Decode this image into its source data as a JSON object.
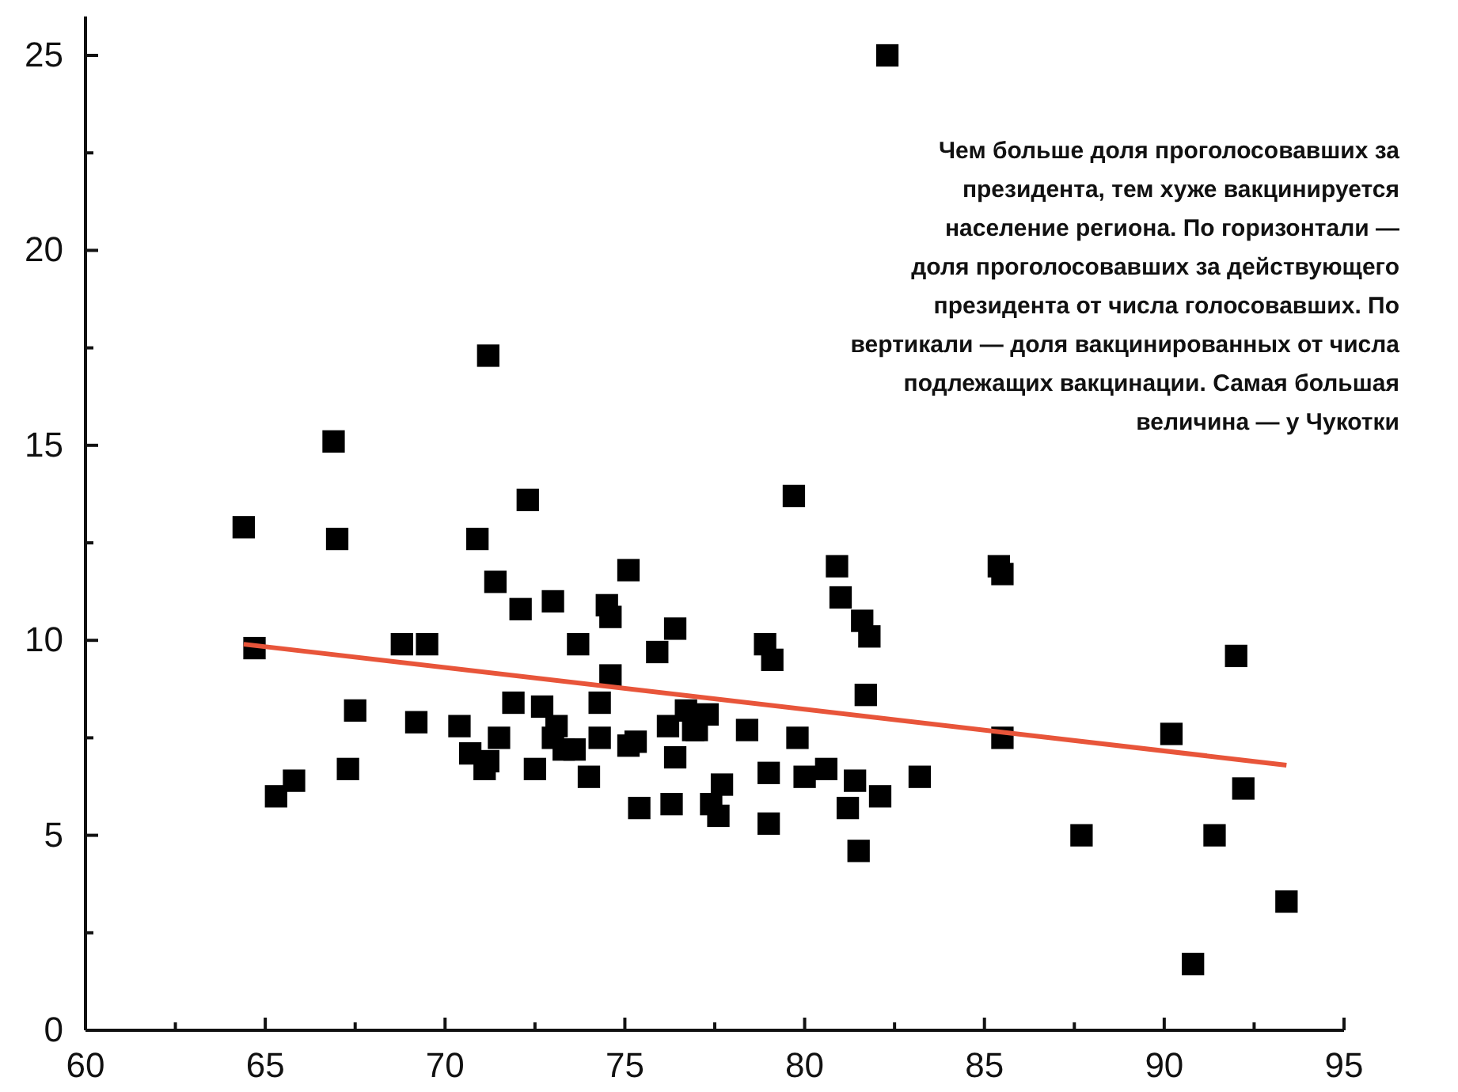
{
  "chart_data": {
    "type": "scatter",
    "grid": false,
    "xlim": [
      60,
      95
    ],
    "ylim": [
      0,
      26
    ],
    "xticks": [
      60,
      {
        "value": 62.5,
        "label": null
      },
      65,
      {
        "value": 67.5,
        "label": null
      },
      70,
      {
        "value": 72.5,
        "label": null
      },
      75,
      {
        "value": 77.5,
        "label": null
      },
      80,
      {
        "value": 82.5,
        "label": null
      },
      85,
      {
        "value": 87.5,
        "label": null
      },
      90,
      {
        "value": 92.5,
        "label": null
      },
      95
    ],
    "yticks": [
      0,
      {
        "value": 2.5,
        "label": null
      },
      5,
      {
        "value": 7.5,
        "label": null
      },
      10,
      {
        "value": 12.5,
        "label": null
      },
      15,
      {
        "value": 17.5,
        "label": null
      },
      20,
      {
        "value": 22.5,
        "label": null
      },
      25
    ],
    "annotations": [
      "Чем больше доля проголосовавших за\nпрезидента, тем хуже вакцинируется\nнаселение региона. По горизонтали —\nдоля проголосовавших за действующего\nпрезидента от числа голосовавших. По\nвертикали — доля вакцинированных от числа\nподлежащих вакцинации. Самая большая\nвеличина — у Чукотки"
    ],
    "series": [
      {
        "marker": "square",
        "color": "#000000",
        "x": [
          64.4,
          64.7,
          65.3,
          65.8,
          66.9,
          67.0,
          67.3,
          67.5,
          68.8,
          69.5,
          69.2,
          70.4,
          70.7,
          70.9,
          71.1,
          71.2,
          71.4,
          71.5,
          71.2,
          71.9,
          72.1,
          72.3,
          72.5,
          72.7,
          73.0,
          73.0,
          73.1,
          73.3,
          73.6,
          73.7,
          74.0,
          74.3,
          74.3,
          74.5,
          74.6,
          74.6,
          75.1,
          75.1,
          75.3,
          75.4,
          75.9,
          76.3,
          76.2,
          76.4,
          76.4,
          76.7,
          76.9,
          77.0,
          77.3,
          77.4,
          77.6,
          77.7,
          78.4,
          78.9,
          79.1,
          79.0,
          79.0,
          79.7,
          79.8,
          80.0,
          80.6,
          80.9,
          81.0,
          81.2,
          81.4,
          81.5,
          81.6,
          81.8,
          81.7,
          82.1,
          82.3,
          83.2,
          85.4,
          85.5,
          85.5,
          87.7,
          90.2,
          90.8,
          91.4,
          92.0,
          92.2,
          93.4
        ],
        "values": [
          12.9,
          9.8,
          6.0,
          6.4,
          15.1,
          12.6,
          6.7,
          8.2,
          9.9,
          9.9,
          7.9,
          7.8,
          7.1,
          12.6,
          6.7,
          17.3,
          11.5,
          7.5,
          6.9,
          8.4,
          10.8,
          13.6,
          6.7,
          8.3,
          11.0,
          7.5,
          7.8,
          7.2,
          7.2,
          9.9,
          6.5,
          8.4,
          7.5,
          10.9,
          10.6,
          9.1,
          7.3,
          11.8,
          7.4,
          5.7,
          9.7,
          5.8,
          7.8,
          10.3,
          7.0,
          8.2,
          7.7,
          7.7,
          8.1,
          5.8,
          5.5,
          6.3,
          7.7,
          9.9,
          9.5,
          6.6,
          5.3,
          13.7,
          7.5,
          6.5,
          6.7,
          11.9,
          11.1,
          5.7,
          6.4,
          4.6,
          10.5,
          10.1,
          8.6,
          6.0,
          25.0,
          6.5,
          11.9,
          11.7,
          7.5,
          5.0,
          7.6,
          1.7,
          5.0,
          9.6,
          6.2,
          3.3
        ]
      },
      {
        "type": "line",
        "marker": "none",
        "color": "#e8553a",
        "x": [
          64.4,
          93.4
        ],
        "values": [
          9.9,
          6.8
        ]
      }
    ]
  }
}
